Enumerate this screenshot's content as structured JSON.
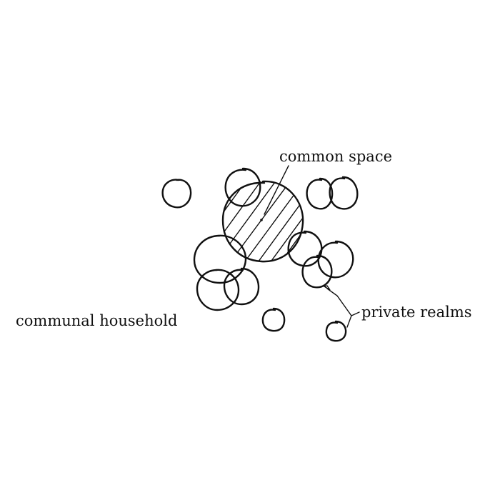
{
  "labels": {
    "common_space": "common space",
    "communal_household": "communal household",
    "private_realms": "private realms"
  },
  "colors": {
    "ink": "#111111",
    "background": "#ffffff"
  }
}
